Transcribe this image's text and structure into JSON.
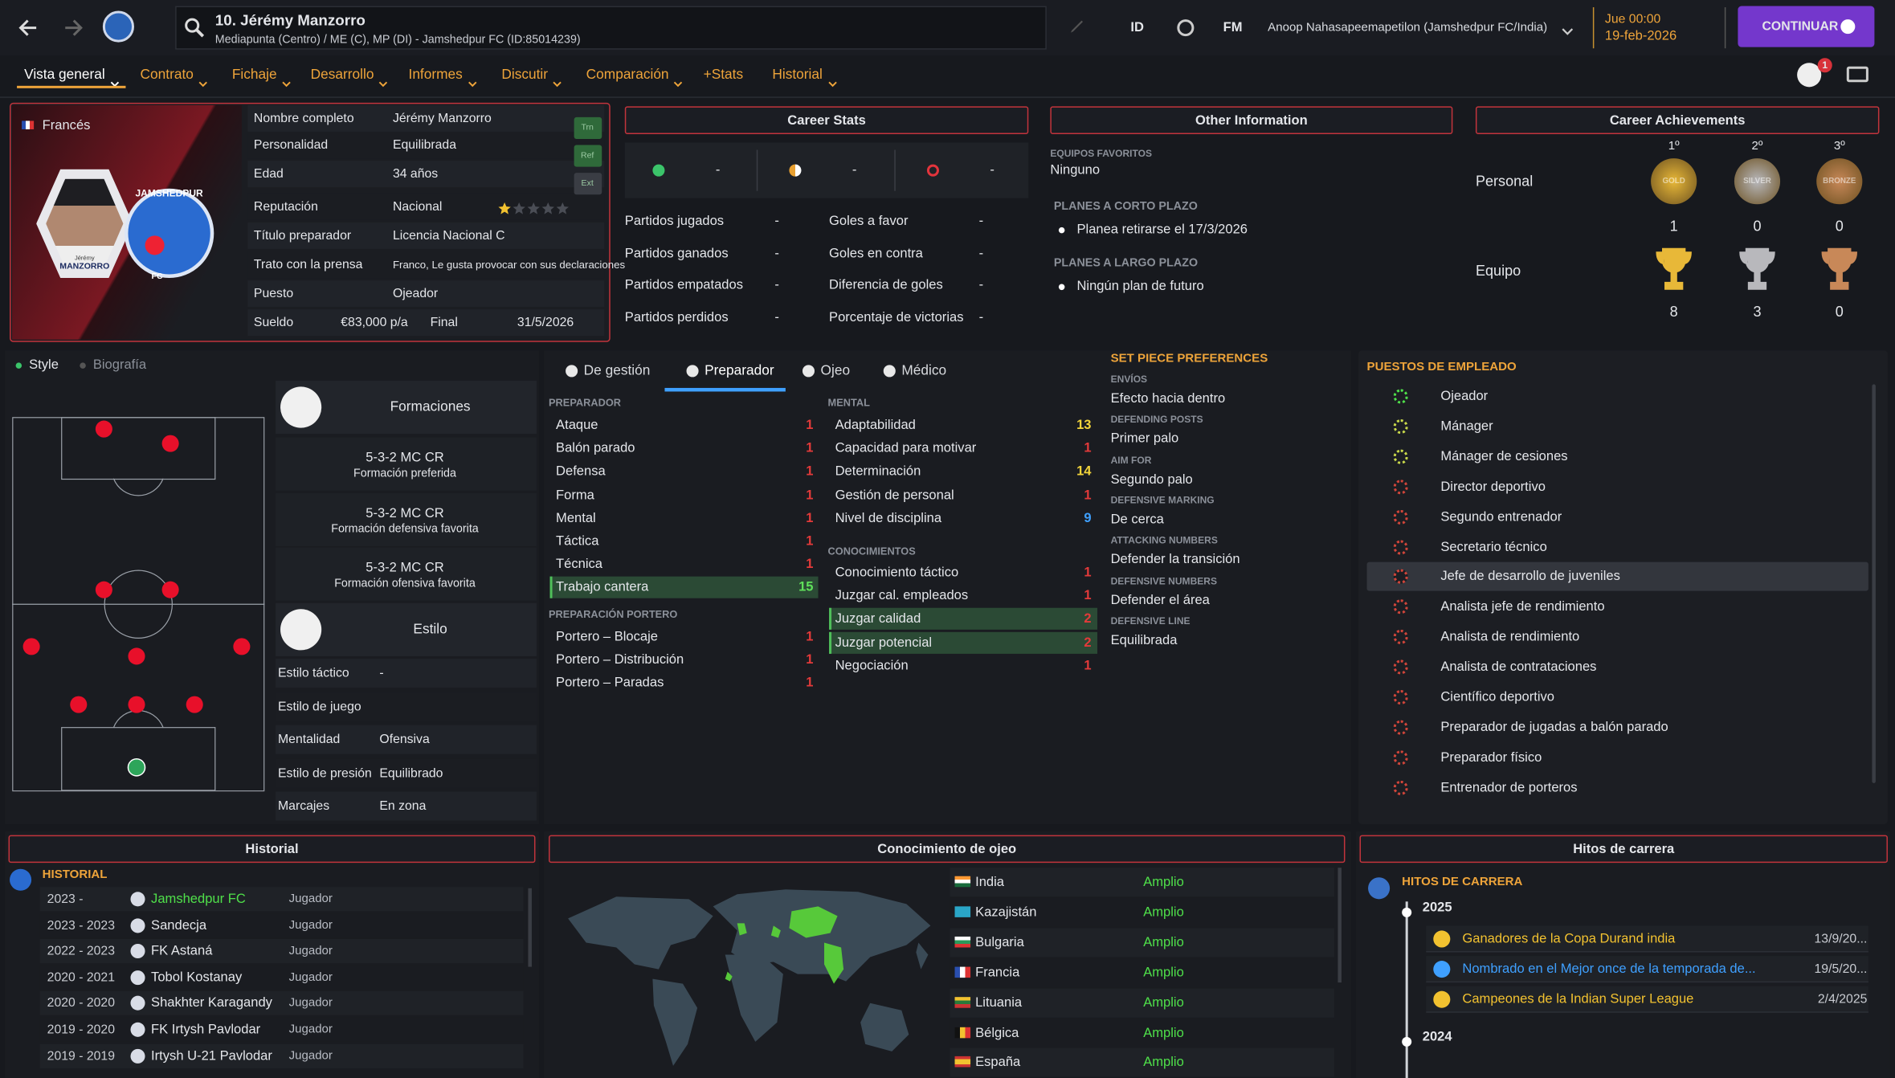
{
  "header": {
    "name": "10. Jérémy Manzorro",
    "subtitle": "Mediapunta (Centro) / ME (C), MP (DI) - Jamshedpur FC (ID:85014239)",
    "id_label": "ID",
    "fm_label": "FM",
    "manager": "Anoop Nahasapeemapetilon (Jamshedpur FC/India)",
    "time": "Jue 00:00",
    "date": "19-feb-2026",
    "continue": "CONTINUAR",
    "notifications": "1"
  },
  "nav": [
    "Vista general",
    "Contrato",
    "Fichaje",
    "Desarrollo",
    "Informes",
    "Discutir",
    "Comparación",
    "+Stats",
    "Historial"
  ],
  "profile": {
    "nationality": "Francés",
    "rows": [
      {
        "label": "Nombre completo",
        "value": "Jérémy Manzorro"
      },
      {
        "label": "Personalidad",
        "value": "Equilibrada"
      },
      {
        "label": "Edad",
        "value": "34 años"
      },
      {
        "label": "Reputación",
        "value": "Nacional"
      },
      {
        "label": "Título preparador",
        "value": "Licencia Nacional C"
      },
      {
        "label": "Trato con la prensa",
        "value": "Franco, Le gusta provocar con sus declaraciones"
      },
      {
        "label": "Puesto",
        "value": "Ojeador"
      }
    ],
    "salary_label": "Sueldo",
    "salary": "€83,000 p/a",
    "end_label": "Final",
    "end": "31/5/2026",
    "badges": [
      "Trn",
      "Ref",
      "Ext"
    ],
    "reputation_stars": 1,
    "reputation_max": 5,
    "card_name": "MANZORRO",
    "card_first": "Jérémy",
    "club_card": "JAMSHEDPUR",
    "club_fc": "FC"
  },
  "career_stats": {
    "title": "Career Stats",
    "summary": [
      "-",
      "-",
      "-"
    ],
    "rows": [
      [
        "Partidos jugados",
        "-",
        "Goles a favor",
        "-"
      ],
      [
        "Partidos ganados",
        "-",
        "Goles en contra",
        "-"
      ],
      [
        "Partidos empatados",
        "-",
        "Diferencia de goles",
        "-"
      ],
      [
        "Partidos perdidos",
        "-",
        "Porcentaje de victorias",
        "-"
      ]
    ]
  },
  "other_info": {
    "title": "Other Information",
    "favorites_label": "EQUIPOS FAVORITOS",
    "favorites": "Ninguno",
    "short_label": "PLANES A CORTO PLAZO",
    "short": "Planea retirarse el 17/3/2026",
    "long_label": "PLANES A LARGO PLAZO",
    "long": "Ningún plan de futuro"
  },
  "achievements": {
    "title": "Career Achievements",
    "places": [
      "1º",
      "2º",
      "3º"
    ],
    "medals": [
      "GOLD",
      "SILVER",
      "BRONZE"
    ],
    "rows": [
      {
        "label": "Personal",
        "counts": [
          1,
          0,
          0
        ]
      },
      {
        "label": "Equipo",
        "counts": [
          8,
          3,
          0
        ]
      }
    ]
  },
  "side_tabs": [
    "Style",
    "Biografía"
  ],
  "formations": {
    "title": "Formaciones",
    "items": [
      {
        "formation": "5-3-2 MC CR",
        "label": "Formación preferida"
      },
      {
        "formation": "5-3-2 MC CR",
        "label": "Formación defensiva favorita"
      },
      {
        "formation": "5-3-2 MC CR",
        "label": "Formación ofensiva favorita"
      }
    ]
  },
  "style": {
    "title": "Estilo",
    "rows": [
      {
        "label": "Estilo táctico",
        "value": "-"
      },
      {
        "label": "Estilo de juego"
      },
      {
        "label": "Mentalidad",
        "value": "Ofensiva"
      },
      {
        "label": "Estilo de presión",
        "value": "Equilibrado"
      },
      {
        "label": "Marcajes",
        "value": "En zona"
      }
    ]
  },
  "attr_tabs": [
    "De gestión",
    "Preparador",
    "Ojeo",
    "Médico"
  ],
  "coach": {
    "label": "PREPARADOR",
    "items": [
      {
        "name": "Ataque",
        "value": 1
      },
      {
        "name": "Balón parado",
        "value": 1
      },
      {
        "name": "Defensa",
        "value": 1
      },
      {
        "name": "Forma",
        "value": 1
      },
      {
        "name": "Mental",
        "value": 1
      },
      {
        "name": "Táctica",
        "value": 1
      },
      {
        "name": "Técnica",
        "value": 1
      },
      {
        "name": "Trabajo cantera",
        "value": 15,
        "highlight": true
      }
    ]
  },
  "goalkeeping": {
    "label": "PREPARACIÓN PORTERO",
    "items": [
      {
        "name": "Portero – Blocaje",
        "value": 1
      },
      {
        "name": "Portero – Distribución",
        "value": 1
      },
      {
        "name": "Portero – Paradas",
        "value": 1
      }
    ]
  },
  "mental": {
    "label": "MENTAL",
    "items": [
      {
        "name": "Adaptabilidad",
        "value": 13
      },
      {
        "name": "Capacidad para motivar",
        "value": 1
      },
      {
        "name": "Determinación",
        "value": 14
      },
      {
        "name": "Gestión de personal",
        "value": 1
      },
      {
        "name": "Nivel de disciplina",
        "value": 9
      }
    ]
  },
  "knowledge": {
    "label": "CONOCIMIENTOS",
    "items": [
      {
        "name": "Conocimiento táctico",
        "value": 1
      },
      {
        "name": "Juzgar cal. empleados",
        "value": 1
      },
      {
        "name": "Juzgar calidad",
        "value": 2,
        "highlight": true
      },
      {
        "name": "Juzgar potencial",
        "value": 2,
        "highlight": true
      },
      {
        "name": "Negociación",
        "value": 1
      }
    ]
  },
  "set_piece": {
    "title": "SET PIECE PREFERENCES",
    "items": [
      {
        "label": "ENVÍOS",
        "value": "Efecto hacia dentro"
      },
      {
        "label": "DEFENDING POSTS",
        "value": "Primer palo"
      },
      {
        "label": "AIM FOR",
        "value": "Segundo palo"
      },
      {
        "label": "DEFENSIVE MARKING",
        "value": "De cerca"
      },
      {
        "label": "ATTACKING NUMBERS",
        "value": "Defender la transición"
      },
      {
        "label": "DEFENSIVE NUMBERS",
        "value": "Defender el área"
      },
      {
        "label": "DEFENSIVE LINE",
        "value": "Equilibrada"
      }
    ]
  },
  "roles": {
    "title": "PUESTOS DE EMPLEADO",
    "items": [
      "Ojeador",
      "Mánager",
      "Mánager de cesiones",
      "Director deportivo",
      "Segundo entrenador",
      "Secretario técnico",
      "Jefe de desarrollo de juveniles",
      "Analista jefe de rendimiento",
      "Analista de rendimiento",
      "Analista de contrataciones",
      "Científico deportivo",
      "Preparador de jugadas a balón parado",
      "Preparador físico",
      "Entrenador de porteros"
    ]
  },
  "history": {
    "title": "Historial",
    "link": "HISTORIAL",
    "rows": [
      [
        "2023 -",
        "Jamshedpur FC",
        "Jugador"
      ],
      [
        "2023 - 2023",
        "Sandecja",
        "Jugador"
      ],
      [
        "2022 - 2023",
        "FK Astaná",
        "Jugador"
      ],
      [
        "2020 - 2021",
        "Tobol Kostanay",
        "Jugador"
      ],
      [
        "2020 - 2020",
        "Shakhter Karagandy",
        "Jugador"
      ],
      [
        "2019 - 2020",
        "FK Irtysh Pavlodar",
        "Jugador"
      ],
      [
        "2019 - 2019",
        "Irtysh U-21 Pavlodar",
        "Jugador"
      ]
    ]
  },
  "scouting": {
    "title": "Conocimiento de ojeo",
    "rows": [
      [
        "India",
        "Amplio"
      ],
      [
        "Kazajistán",
        "Amplio"
      ],
      [
        "Bulgaria",
        "Amplio"
      ],
      [
        "Francia",
        "Amplio"
      ],
      [
        "Lituania",
        "Amplio"
      ],
      [
        "Bélgica",
        "Amplio"
      ],
      [
        "España",
        "Amplio"
      ]
    ]
  },
  "milestones": {
    "title": "Hitos de carrera",
    "link": "HITOS DE CARRERA",
    "years": [
      {
        "year": "2025",
        "items": [
          [
            "Ganadores de la Copa Durand india",
            "13/9/20..."
          ],
          [
            "Nombrado en el Mejor once de la temporada de...",
            "19/5/20..."
          ],
          [
            "Campeones de la Indian Super League",
            "2/4/2025"
          ]
        ]
      },
      {
        "year": "2024"
      }
    ]
  }
}
